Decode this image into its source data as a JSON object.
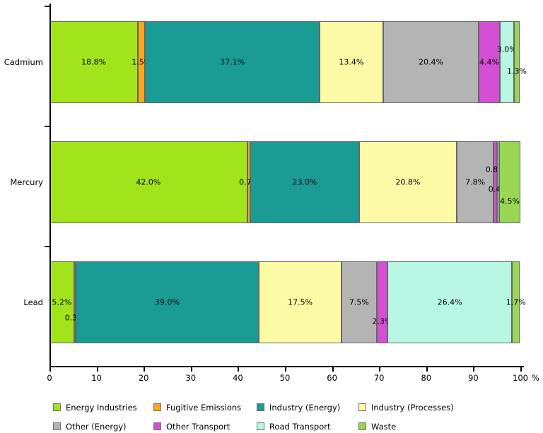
{
  "chart_data": {
    "type": "bar",
    "subtype": "horizontal-stacked",
    "title": "",
    "categories": [
      "Cadmium",
      "Mercury",
      "Lead"
    ],
    "series": [
      {
        "name": "Energy Industries",
        "color": "#A2E41B",
        "values": [
          18.8,
          42.0,
          5.2
        ],
        "label_dy": [
          0,
          0,
          0
        ]
      },
      {
        "name": "Fugitive Emissions",
        "color": "#FBA81C",
        "values": [
          1.5,
          0.7,
          0.3
        ],
        "label_dy": [
          0,
          0,
          22
        ]
      },
      {
        "name": "Industry (Energy)",
        "color": "#1A9C94",
        "values": [
          37.1,
          23.0,
          39.0
        ],
        "label_dy": [
          0,
          0,
          0
        ]
      },
      {
        "name": "Industry (Processes)",
        "color": "#FCFAA4",
        "values": [
          13.4,
          20.8,
          17.5
        ],
        "label_dy": [
          0,
          0,
          0
        ]
      },
      {
        "name": "Other (Energy)",
        "color": "#B4B4B4",
        "values": [
          20.4,
          7.8,
          7.5
        ],
        "label_dy": [
          0,
          0,
          0
        ]
      },
      {
        "name": "Other Transport",
        "color": "#D44FD4",
        "values": [
          4.4,
          0.8,
          2.3
        ],
        "label_dy": [
          0,
          -18,
          27
        ]
      },
      {
        "name": "Road Transport",
        "color": "#B6F6E2",
        "values": [
          3.0,
          0.4,
          26.4
        ],
        "label_dy": [
          -18,
          10,
          0
        ]
      },
      {
        "name": "Waste",
        "color": "#98D653",
        "values": [
          1.3,
          4.5,
          1.7
        ],
        "label_dy": [
          13,
          27,
          0
        ]
      }
    ],
    "data_labels": {
      "Cadmium": [
        "18.8%",
        "1.5%",
        "37.1%",
        "13.4%",
        "20.4%",
        "4.4%",
        "3.0%",
        "1.3%"
      ],
      "Mercury": [
        "42.0%",
        "0.7%",
        "23.0%",
        "20.8%",
        "7.8%",
        "0.8%",
        "0.4%",
        "4.5%"
      ],
      "Lead": [
        "5.2%",
        "0.3%",
        "39.0%",
        "17.5%",
        "7.5%",
        "2.3%",
        "26.4%",
        "1.7%"
      ]
    },
    "xlabel": "",
    "ylabel": "",
    "x_axis": {
      "min": 0,
      "max": 100,
      "step": 10,
      "ticks": [
        0,
        10,
        20,
        30,
        40,
        50,
        60,
        70,
        80,
        90,
        100
      ],
      "unit_label": "%"
    },
    "grid": false,
    "legend_position": "bottom",
    "legend": [
      "Energy Industries",
      "Fugitive Emissions",
      "Industry (Energy)",
      "Industry (Processes)",
      "Other (Energy)",
      "Other Transport",
      "Road Transport",
      "Waste"
    ]
  }
}
